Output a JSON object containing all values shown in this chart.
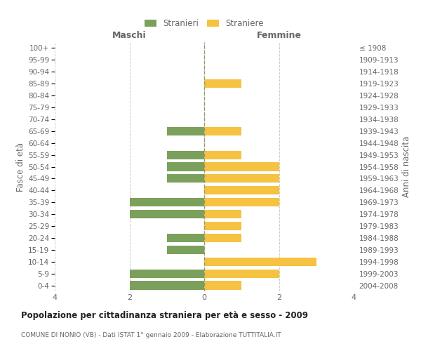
{
  "age_groups": [
    "0-4",
    "5-9",
    "10-14",
    "15-19",
    "20-24",
    "25-29",
    "30-34",
    "35-39",
    "40-44",
    "45-49",
    "50-54",
    "55-59",
    "60-64",
    "65-69",
    "70-74",
    "75-79",
    "80-84",
    "85-89",
    "90-94",
    "95-99",
    "100+"
  ],
  "birth_years": [
    "2004-2008",
    "1999-2003",
    "1994-1998",
    "1989-1993",
    "1984-1988",
    "1979-1983",
    "1974-1978",
    "1969-1973",
    "1964-1968",
    "1959-1963",
    "1954-1958",
    "1949-1953",
    "1944-1948",
    "1939-1943",
    "1934-1938",
    "1929-1933",
    "1924-1928",
    "1919-1923",
    "1914-1918",
    "1909-1913",
    "≤ 1908"
  ],
  "males": [
    2,
    2,
    0,
    1,
    1,
    0,
    2,
    2,
    0,
    1,
    1,
    1,
    0,
    1,
    0,
    0,
    0,
    0,
    0,
    0,
    0
  ],
  "females": [
    1,
    2,
    3,
    0,
    1,
    1,
    1,
    2,
    2,
    2,
    2,
    1,
    0,
    1,
    0,
    0,
    0,
    1,
    0,
    0,
    0
  ],
  "male_color": "#7ba05b",
  "female_color": "#f5c242",
  "bar_height": 0.72,
  "xlim": 4,
  "title": "Popolazione per cittadinanza straniera per età e sesso - 2009",
  "subtitle": "COMUNE DI NONIO (VB) - Dati ISTAT 1° gennaio 2009 - Elaborazione TUTTITALIA.IT",
  "ylabel_left": "Fasce di età",
  "ylabel_right": "Anni di nascita",
  "legend_stranieri": "Stranieri",
  "legend_straniere": "Straniere",
  "maschi_label": "Maschi",
  "femmine_label": "Femmine",
  "grid_color": "#cccccc",
  "axis_color": "#999999",
  "text_color": "#666666",
  "bg_color": "#ffffff"
}
